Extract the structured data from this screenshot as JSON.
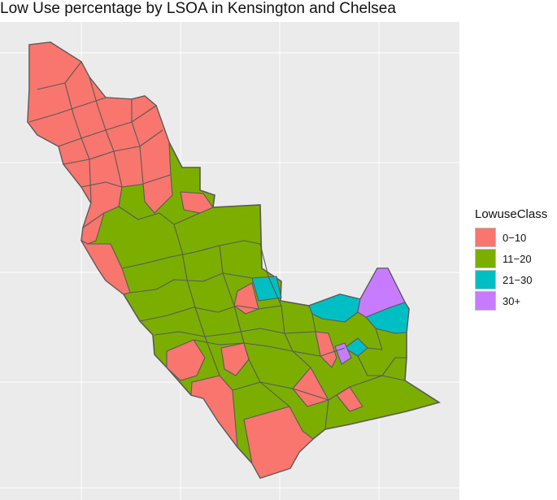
{
  "title": "Low Use percentage by LSOA in Kensington and Chelsea",
  "legend": {
    "title": "LowuseClass",
    "items": [
      {
        "label": "0−10",
        "color": "#F8766D"
      },
      {
        "label": "11−20",
        "color": "#7CAE00"
      },
      {
        "label": "21−30",
        "color": "#00BFC4"
      },
      {
        "label": "30+",
        "color": "#C77CFF"
      }
    ]
  },
  "map": {
    "background": "#EBEBEB",
    "gridline_color": "#FFFFFF",
    "border_color": "#595959"
  }
}
